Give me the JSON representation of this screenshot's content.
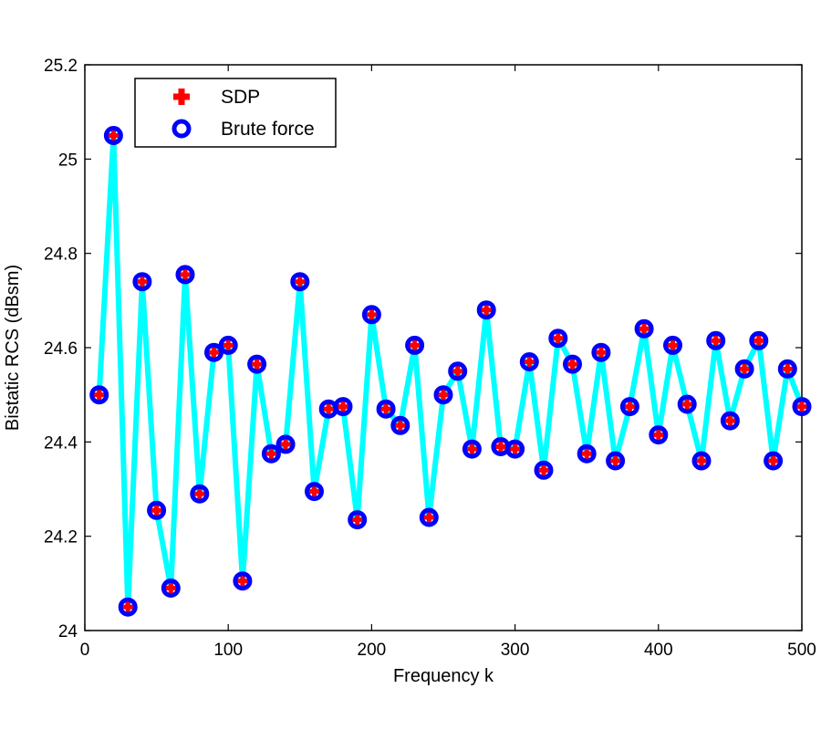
{
  "chart_data": {
    "type": "line",
    "xlabel": "Frequency k",
    "ylabel": "Bistatic RCS (dBsm)",
    "xlim": [
      0,
      500
    ],
    "ylim": [
      24,
      25.2
    ],
    "xticks": [
      0,
      100,
      200,
      300,
      400,
      500
    ],
    "xtick_labels": [
      "0",
      "100",
      "200",
      "300",
      "400",
      "500"
    ],
    "yticks": [
      24,
      24.2,
      24.4,
      24.6,
      24.8,
      25,
      25.2
    ],
    "ytick_labels": [
      "24",
      "24.2",
      "24.4",
      "24.6",
      "24.8",
      "25",
      "25.2"
    ],
    "grid": false,
    "legend_position": "top-left",
    "x": [
      10,
      20,
      30,
      40,
      50,
      60,
      70,
      80,
      90,
      100,
      110,
      120,
      130,
      140,
      150,
      160,
      170,
      180,
      190,
      200,
      210,
      220,
      230,
      240,
      250,
      260,
      270,
      280,
      290,
      300,
      310,
      320,
      330,
      340,
      350,
      360,
      370,
      380,
      390,
      400,
      410,
      420,
      430,
      440,
      450,
      460,
      470,
      480,
      490,
      500
    ],
    "series": [
      {
        "name": "SDP",
        "marker": "plus",
        "color": "#ff0000",
        "values": [
          24.5,
          25.05,
          24.05,
          24.74,
          24.255,
          24.09,
          24.755,
          24.29,
          24.59,
          24.605,
          24.105,
          24.565,
          24.375,
          24.395,
          24.74,
          24.295,
          24.47,
          24.475,
          24.235,
          24.67,
          24.47,
          24.435,
          24.605,
          24.24,
          24.5,
          24.55,
          24.385,
          24.68,
          24.39,
          24.385,
          24.57,
          24.34,
          24.62,
          24.565,
          24.375,
          24.59,
          24.36,
          24.475,
          24.64,
          24.415,
          24.605,
          24.48,
          24.36,
          24.615,
          24.445,
          24.555,
          24.615,
          24.36,
          24.555,
          24.475
        ]
      },
      {
        "name": "Brute force",
        "marker": "circle",
        "color": "#0000ff",
        "line_color": "#00ffff",
        "values": [
          24.5,
          25.05,
          24.05,
          24.74,
          24.255,
          24.09,
          24.755,
          24.29,
          24.59,
          24.605,
          24.105,
          24.565,
          24.375,
          24.395,
          24.74,
          24.295,
          24.47,
          24.475,
          24.235,
          24.67,
          24.47,
          24.435,
          24.605,
          24.24,
          24.5,
          24.55,
          24.385,
          24.68,
          24.39,
          24.385,
          24.57,
          24.34,
          24.62,
          24.565,
          24.375,
          24.59,
          24.36,
          24.475,
          24.64,
          24.415,
          24.605,
          24.48,
          24.36,
          24.615,
          24.445,
          24.555,
          24.615,
          24.36,
          24.555,
          24.475
        ]
      }
    ]
  }
}
